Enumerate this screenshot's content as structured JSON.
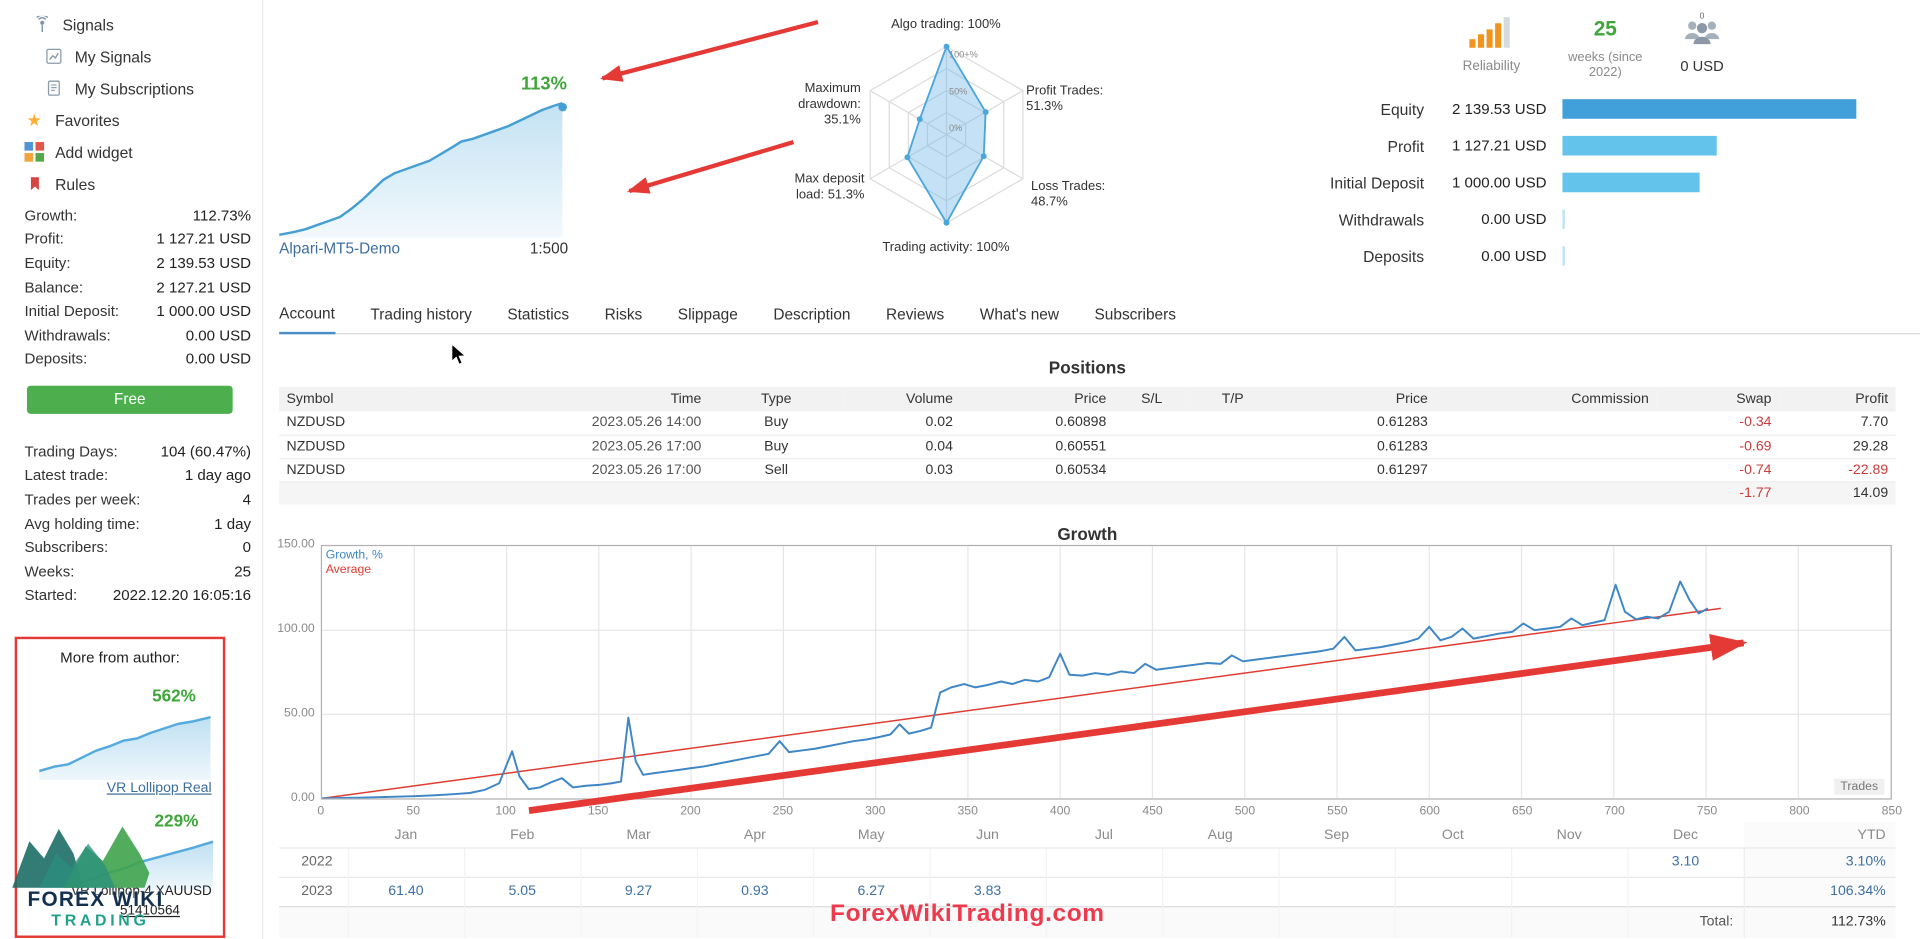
{
  "colors": {
    "accent_green": "#3fa63a",
    "link_blue": "#3c6e9f",
    "chart_blue": "#459fd4",
    "annotation_red": "#e53935",
    "bar_dark_blue": "#41a0d9",
    "bar_light_blue": "#63c3ea",
    "negative_red": "#ca3c3c",
    "watermark_red": "#ed3b4d",
    "reliability_orange": "#f0941f"
  },
  "sidebar": {
    "nav": [
      {
        "label": "Signals",
        "icon": "signals-icon"
      },
      {
        "label": "My Signals",
        "icon": "my-signals-icon"
      },
      {
        "label": "My Subscriptions",
        "icon": "my-subscriptions-icon"
      },
      {
        "label": "Favorites",
        "icon": "favorites-star-icon"
      },
      {
        "label": "Add widget",
        "icon": "add-widget-icon"
      },
      {
        "label": "Rules",
        "icon": "rules-bookmark-icon"
      }
    ],
    "account_stats": [
      {
        "label": "Growth:",
        "value": "112.73%"
      },
      {
        "label": "Profit:",
        "value": "1 127.21 USD"
      },
      {
        "label": "Equity:",
        "value": "2 139.53 USD"
      },
      {
        "label": "Balance:",
        "value": "2 127.21 USD"
      },
      {
        "label": "Initial Deposit:",
        "value": "1 000.00 USD"
      },
      {
        "label": "Withdrawals:",
        "value": "0.00 USD"
      },
      {
        "label": "Deposits:",
        "value": "0.00 USD"
      }
    ],
    "free_button_label": "Free",
    "activity_stats": [
      {
        "label": "Trading Days:",
        "value": "104 (60.47%)"
      },
      {
        "label": "Latest trade:",
        "value": "1 day ago"
      },
      {
        "label": "Trades per week:",
        "value": "4"
      },
      {
        "label": "Avg holding time:",
        "value": "1 day"
      },
      {
        "label": "Subscribers:",
        "value": "0"
      },
      {
        "label": "Weeks:",
        "value": "25"
      },
      {
        "label": "Started:",
        "value": "2022.12.20 16:05:16"
      }
    ],
    "more_from_author": {
      "title": "More from author:",
      "signal1": {
        "growth": "562%",
        "name": "VR Lollipop Real"
      },
      "signal2": {
        "growth": "229%",
        "name": "VR Lollipop-4 XAUUSD",
        "account": "51410564"
      }
    },
    "logo": {
      "line1": "FOREX WIKI",
      "line2": "TRADING"
    }
  },
  "header": {
    "growth_pct": "113%",
    "broker": "Alpari-MT5-Demo",
    "leverage": "1:500",
    "reliability_label": "Reliability",
    "weeks_value": "25",
    "weeks_label": "weeks (since 2022)",
    "funds_value": "0 USD",
    "account_rows": [
      {
        "label": "Equity",
        "value": "2 139.53 USD",
        "bar_pct": 100,
        "bar_color": "#41a0d9"
      },
      {
        "label": "Profit",
        "value": "1 127.21 USD",
        "bar_pct": 52.7,
        "bar_color": "#63c3ea"
      },
      {
        "label": "Initial Deposit",
        "value": "1 000.00 USD",
        "bar_pct": 46.7,
        "bar_color": "#63c3ea"
      },
      {
        "label": "Withdrawals",
        "value": "0.00 USD",
        "bar_pct": 0.8,
        "bar_color": "#bfe4f5"
      },
      {
        "label": "Deposits",
        "value": "0.00 USD",
        "bar_pct": 0.8,
        "bar_color": "#bfe4f5"
      }
    ]
  },
  "radar": {
    "labels": [
      "Algo trading: 100%",
      "Profit Trades:\n51.3%",
      "Loss Trades:\n48.7%",
      "Trading activity: 100%",
      "Max deposit\nload: 51.3%",
      "Maximum\ndrawdown:\n35.1%"
    ],
    "values": [
      100,
      51.3,
      48.7,
      100,
      51.3,
      35.1
    ],
    "rings": [
      "0%",
      "50%",
      "100+%"
    ]
  },
  "tabs": [
    {
      "label": "Account",
      "active": true
    },
    {
      "label": "Trading history",
      "active": false
    },
    {
      "label": "Statistics",
      "active": false
    },
    {
      "label": "Risks",
      "active": false
    },
    {
      "label": "Slippage",
      "active": false
    },
    {
      "label": "Description",
      "active": false
    },
    {
      "label": "Reviews",
      "active": false
    },
    {
      "label": "What's new",
      "active": false
    },
    {
      "label": "Subscribers",
      "active": false
    }
  ],
  "positions": {
    "title": "Positions",
    "columns": [
      "Symbol",
      "Time",
      "Type",
      "Volume",
      "Price",
      "S/L",
      "T/P",
      "Price",
      "Commission",
      "Swap",
      "Profit"
    ],
    "col_align": [
      "al",
      "ar",
      "ac",
      "ar",
      "ar",
      "ac",
      "ac",
      "ar",
      "ar",
      "ar",
      "ar"
    ],
    "rows": [
      [
        "NZDUSD",
        "2023.05.26 14:00",
        "Buy",
        "0.02",
        "0.60898",
        "",
        "",
        "0.61283",
        "",
        "-0.34",
        "7.70"
      ],
      [
        "NZDUSD",
        "2023.05.26 17:00",
        "Buy",
        "0.04",
        "0.60551",
        "",
        "",
        "0.61283",
        "",
        "-0.69",
        "29.28"
      ],
      [
        "NZDUSD",
        "2023.05.26 17:00",
        "Sell",
        "0.03",
        "0.60534",
        "",
        "",
        "0.61297",
        "",
        "-0.74",
        "-22.89"
      ]
    ],
    "totals": {
      "swap": "-1.77",
      "profit": "14.09"
    }
  },
  "growth_section": {
    "title": "Growth",
    "legend": [
      {
        "label": "Growth, %",
        "color": "#3e86c6"
      },
      {
        "label": "Average",
        "color": "#e03c31"
      }
    ],
    "trades_label": "Trades",
    "y_ticks": [
      "150.00",
      "100.00",
      "50.00",
      "0.00"
    ]
  },
  "chart_data": [
    {
      "type": "line",
      "name": "main-growth-chart",
      "title": "Growth",
      "xlabel": "Trades",
      "ylabel": "Growth, %",
      "xlim": [
        0,
        850
      ],
      "ylim": [
        0,
        150
      ],
      "x_ticks": [
        "0",
        "50",
        "100",
        "150",
        "200",
        "250",
        "300",
        "350",
        "400",
        "450",
        "500",
        "550",
        "600",
        "650",
        "700",
        "750",
        "800",
        "850"
      ],
      "grid": true,
      "legend_position": "top-left",
      "series": [
        {
          "name": "Growth, %",
          "color": "#3e86c6",
          "points": [
            [
              0,
              0
            ],
            [
              10,
              0.2
            ],
            [
              20,
              0.4
            ],
            [
              30,
              0.7
            ],
            [
              40,
              1
            ],
            [
              50,
              1.3
            ],
            [
              60,
              1.8
            ],
            [
              70,
              2.4
            ],
            [
              80,
              3.2
            ],
            [
              88,
              5
            ],
            [
              96,
              9
            ],
            [
              103,
              28
            ],
            [
              107,
              13
            ],
            [
              112,
              5.5
            ],
            [
              118,
              6.5
            ],
            [
              124,
              9.5
            ],
            [
              130,
              12
            ],
            [
              136,
              6.5
            ],
            [
              143,
              7.5
            ],
            [
              150,
              8
            ],
            [
              157,
              9
            ],
            [
              162,
              10
            ],
            [
              166,
              48
            ],
            [
              170,
              22
            ],
            [
              174,
              14
            ],
            [
              180,
              15
            ],
            [
              187,
              16
            ],
            [
              194,
              17
            ],
            [
              200,
              18
            ],
            [
              207,
              19
            ],
            [
              214,
              20.5
            ],
            [
              221,
              22
            ],
            [
              228,
              23.5
            ],
            [
              235,
              25
            ],
            [
              242,
              26.5
            ],
            [
              248,
              34
            ],
            [
              253,
              27.5
            ],
            [
              260,
              28.5
            ],
            [
              267,
              29.5
            ],
            [
              274,
              31
            ],
            [
              281,
              32.5
            ],
            [
              288,
              34
            ],
            [
              295,
              35
            ],
            [
              302,
              36.5
            ],
            [
              308,
              38
            ],
            [
              313,
              44
            ],
            [
              318,
              38.5
            ],
            [
              324,
              40
            ],
            [
              330,
              42
            ],
            [
              335,
              63
            ],
            [
              341,
              66
            ],
            [
              348,
              68
            ],
            [
              354,
              66
            ],
            [
              361,
              67.5
            ],
            [
              368,
              69.5
            ],
            [
              374,
              68
            ],
            [
              381,
              70.5
            ],
            [
              388,
              69.5
            ],
            [
              394,
              72
            ],
            [
              400,
              86
            ],
            [
              405,
              73.5
            ],
            [
              412,
              73
            ],
            [
              419,
              74.5
            ],
            [
              426,
              73.5
            ],
            [
              433,
              75.5
            ],
            [
              440,
              74.5
            ],
            [
              446,
              80
            ],
            [
              452,
              76.5
            ],
            [
              459,
              77.5
            ],
            [
              466,
              78.5
            ],
            [
              473,
              79.5
            ],
            [
              480,
              80.5
            ],
            [
              487,
              80
            ],
            [
              493,
              85
            ],
            [
              499,
              81.5
            ],
            [
              506,
              82.5
            ],
            [
              513,
              83.5
            ],
            [
              520,
              84.5
            ],
            [
              527,
              85.5
            ],
            [
              534,
              86.5
            ],
            [
              541,
              87.5
            ],
            [
              548,
              89
            ],
            [
              554,
              96
            ],
            [
              560,
              88
            ],
            [
              567,
              89
            ],
            [
              574,
              90
            ],
            [
              581,
              91.5
            ],
            [
              588,
              93
            ],
            [
              594,
              95
            ],
            [
              600,
              102
            ],
            [
              606,
              94
            ],
            [
              612,
              96
            ],
            [
              618,
              101
            ],
            [
              624,
              95
            ],
            [
              631,
              96.5
            ],
            [
              638,
              98
            ],
            [
              645,
              99
            ],
            [
              651,
              104
            ],
            [
              657,
              100
            ],
            [
              664,
              101
            ],
            [
              671,
              102
            ],
            [
              677,
              107
            ],
            [
              683,
              103
            ],
            [
              689,
              104.5
            ],
            [
              695,
              106
            ],
            [
              701,
              127
            ],
            [
              706,
              111
            ],
            [
              712,
              106.5
            ],
            [
              718,
              108
            ],
            [
              724,
              107
            ],
            [
              730,
              111
            ],
            [
              736,
              129
            ],
            [
              741,
              118
            ],
            [
              746,
              110
            ],
            [
              751,
              113
            ]
          ]
        },
        {
          "name": "Average",
          "color": "#e03c31",
          "points": [
            [
              0,
              0
            ],
            [
              758,
              113
            ]
          ]
        }
      ]
    },
    {
      "type": "line",
      "name": "signal-growth-sparkline",
      "end_label": "113%",
      "ylim": [
        0,
        100
      ],
      "points": [
        [
          0,
          2
        ],
        [
          5,
          4
        ],
        [
          9,
          6
        ],
        [
          13,
          9
        ],
        [
          17,
          12
        ],
        [
          21,
          15
        ],
        [
          25,
          21
        ],
        [
          29,
          28
        ],
        [
          33,
          36
        ],
        [
          36,
          42
        ],
        [
          40,
          47
        ],
        [
          44,
          50
        ],
        [
          48,
          53
        ],
        [
          52,
          56
        ],
        [
          56,
          61
        ],
        [
          60,
          66
        ],
        [
          63,
          70
        ],
        [
          67,
          72
        ],
        [
          71,
          75
        ],
        [
          75,
          78
        ],
        [
          79,
          81
        ],
        [
          83,
          85
        ],
        [
          87,
          89
        ],
        [
          91,
          93
        ],
        [
          95,
          96
        ],
        [
          98,
          98
        ]
      ]
    },
    {
      "type": "radar",
      "name": "signal-quality-radar",
      "categories": [
        "Algo trading",
        "Profit Trades",
        "Loss Trades",
        "Trading activity",
        "Max deposit load",
        "Maximum drawdown"
      ],
      "values": [
        100,
        51.3,
        48.7,
        100,
        51.3,
        35.1
      ],
      "rings": [
        "0%",
        "50%",
        "100+%"
      ]
    },
    {
      "type": "line",
      "name": "author-sparkline-1",
      "end_label": "562%",
      "ylim": [
        0,
        60
      ],
      "points": [
        [
          0,
          8
        ],
        [
          9,
          12
        ],
        [
          17,
          14
        ],
        [
          25,
          20
        ],
        [
          33,
          26
        ],
        [
          41,
          30
        ],
        [
          49,
          35
        ],
        [
          57,
          37
        ],
        [
          65,
          42
        ],
        [
          73,
          46
        ],
        [
          81,
          50
        ],
        [
          89,
          52
        ],
        [
          100,
          56
        ]
      ]
    },
    {
      "type": "line",
      "name": "author-sparkline-2",
      "end_label": "229%",
      "ylim": [
        0,
        50
      ],
      "points": [
        [
          0,
          6
        ],
        [
          12,
          10
        ],
        [
          24,
          16
        ],
        [
          36,
          20
        ],
        [
          48,
          26
        ],
        [
          60,
          30
        ],
        [
          72,
          34
        ],
        [
          84,
          38
        ],
        [
          100,
          44
        ]
      ]
    }
  ],
  "monthly": {
    "months": [
      "Jan",
      "Feb",
      "Mar",
      "Apr",
      "May",
      "Jun",
      "Jul",
      "Aug",
      "Sep",
      "Oct",
      "Nov",
      "Dec"
    ],
    "ytd_label": "YTD",
    "rows": [
      {
        "year": "2022",
        "values": [
          "",
          "",
          "",
          "",
          "",
          "",
          "",
          "",
          "",
          "",
          "",
          "3.10"
        ],
        "ytd": "3.10%"
      },
      {
        "year": "2023",
        "values": [
          "61.40",
          "5.05",
          "9.27",
          "0.93",
          "6.27",
          "3.83",
          "",
          "",
          "",
          "",
          "",
          ""
        ],
        "ytd": "106.34%"
      }
    ],
    "total_label": "Total:",
    "total_value": "112.73%"
  },
  "watermark": "ForexWikiTrading.com"
}
